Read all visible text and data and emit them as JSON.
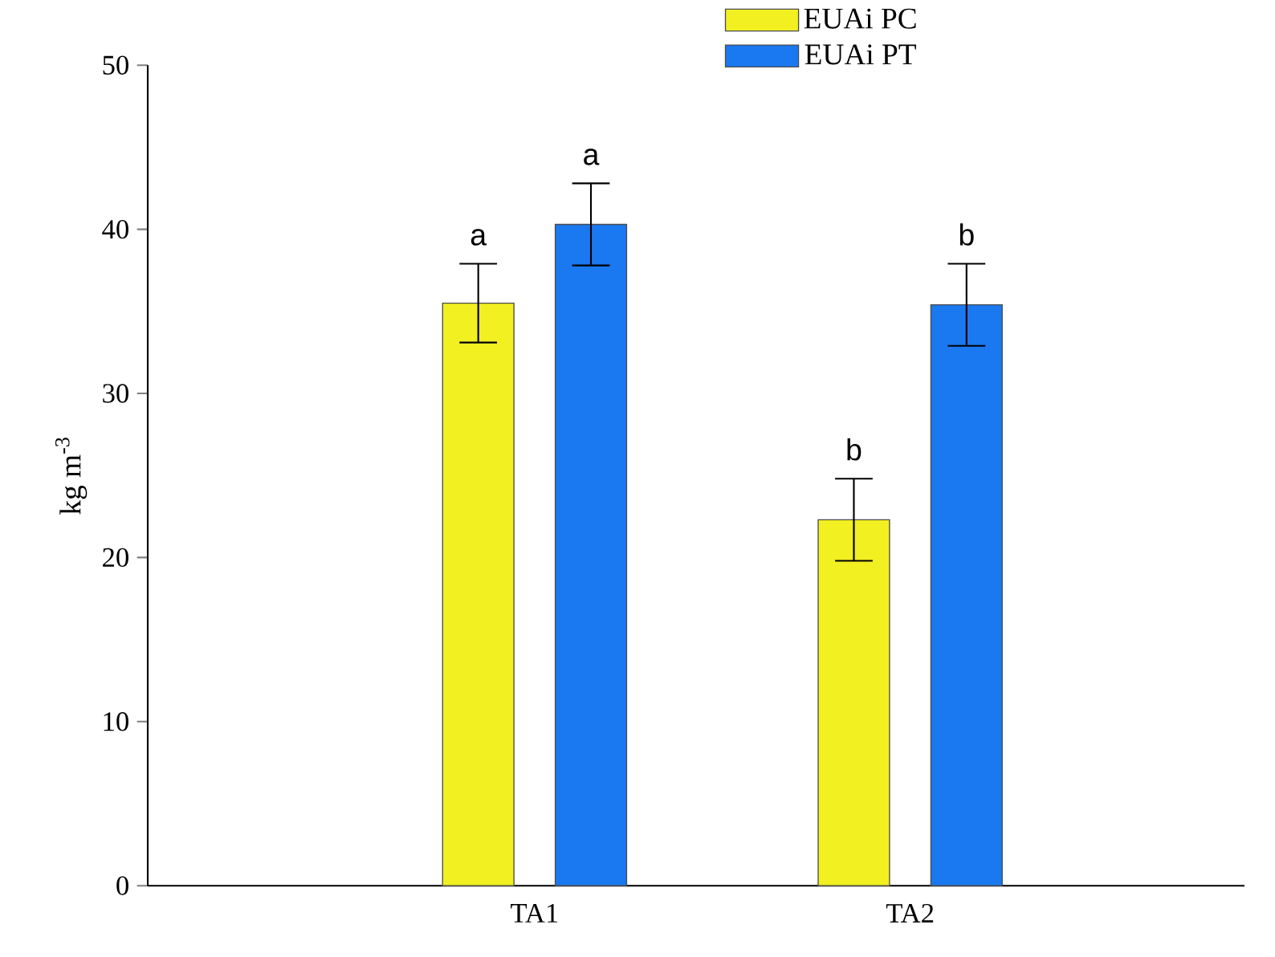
{
  "chart_data": {
    "type": "bar",
    "ylabel": "kg m$^{-3}$",
    "categories": [
      "TA1",
      "TA2"
    ],
    "series": [
      {
        "name": "EUAi PC",
        "color": "#f2f020",
        "values": [
          35.5,
          22.3
        ],
        "errors": [
          2.4,
          2.5
        ]
      },
      {
        "name": "EUAi PT",
        "color": "#1a78f0",
        "values": [
          40.3,
          35.4
        ],
        "errors": [
          2.5,
          2.5
        ]
      }
    ],
    "ylim": [
      0,
      50
    ],
    "yticks": [
      0,
      10,
      20,
      30,
      40,
      50
    ],
    "grid": false,
    "legend": "top",
    "annotations": [
      "a",
      "a",
      "b",
      "b"
    ]
  }
}
